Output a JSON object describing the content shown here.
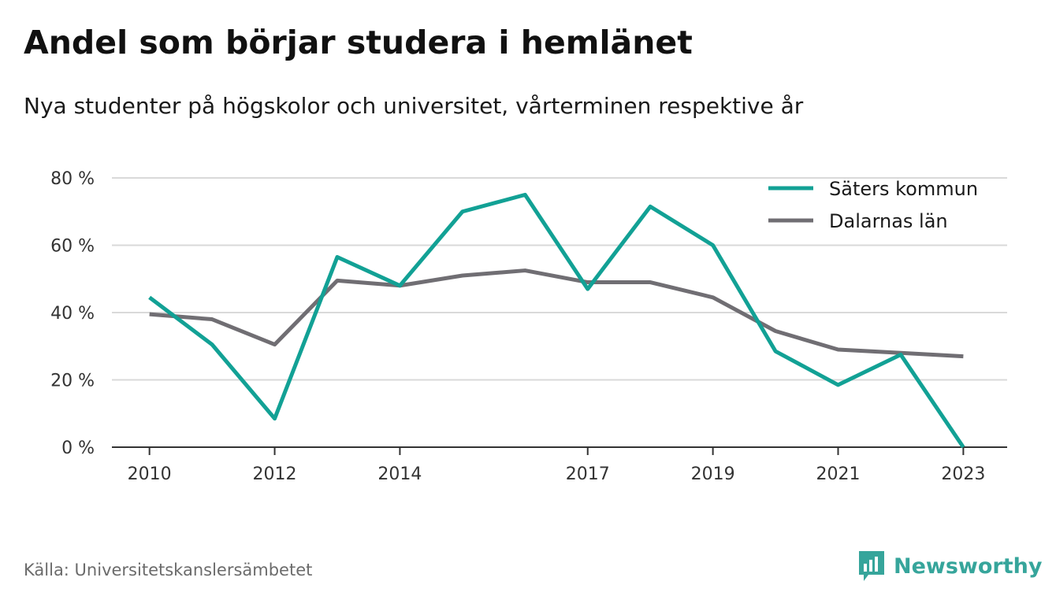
{
  "title": "Andel som börjar studera i hemlänet",
  "subtitle": "Nya studenter på högskolor och universitet, vårterminen respektive år",
  "source": "Källa: Universitetskanslersämbetet",
  "brand": {
    "name": "Newsworthy",
    "color": "#36a59b",
    "icon": "newsworthy-logo-icon"
  },
  "chart_data": {
    "type": "line",
    "x": [
      2010,
      2011,
      2012,
      2013,
      2014,
      2015,
      2016,
      2017,
      2018,
      2019,
      2020,
      2021,
      2022,
      2023
    ],
    "xtick_values": [
      2010,
      2012,
      2014,
      2017,
      2019,
      2021,
      2023
    ],
    "xtick_labels": [
      "2010",
      "2012",
      "2014",
      "2017",
      "2019",
      "2021",
      "2023"
    ],
    "ytick_values": [
      0,
      20,
      40,
      60,
      80
    ],
    "ytick_labels": [
      "0 %",
      "20 %",
      "40 %",
      "60 %",
      "80 %"
    ],
    "ylim": [
      0,
      80
    ],
    "xlim": [
      2009.4,
      2023.7
    ],
    "grid": true,
    "legend_position": "top-right",
    "series": [
      {
        "name": "Säters kommun",
        "color": "#12a195",
        "values": [
          44.5,
          30.5,
          8.5,
          56.5,
          48.0,
          70.0,
          75.0,
          47.0,
          71.5,
          60.0,
          28.5,
          18.5,
          27.5,
          0.0
        ]
      },
      {
        "name": "Dalarnas län",
        "color": "#706e73",
        "values": [
          39.5,
          38.0,
          30.5,
          49.5,
          48.0,
          51.0,
          52.5,
          49.0,
          49.0,
          44.5,
          34.5,
          29.0,
          28.0,
          27.0
        ]
      }
    ]
  }
}
